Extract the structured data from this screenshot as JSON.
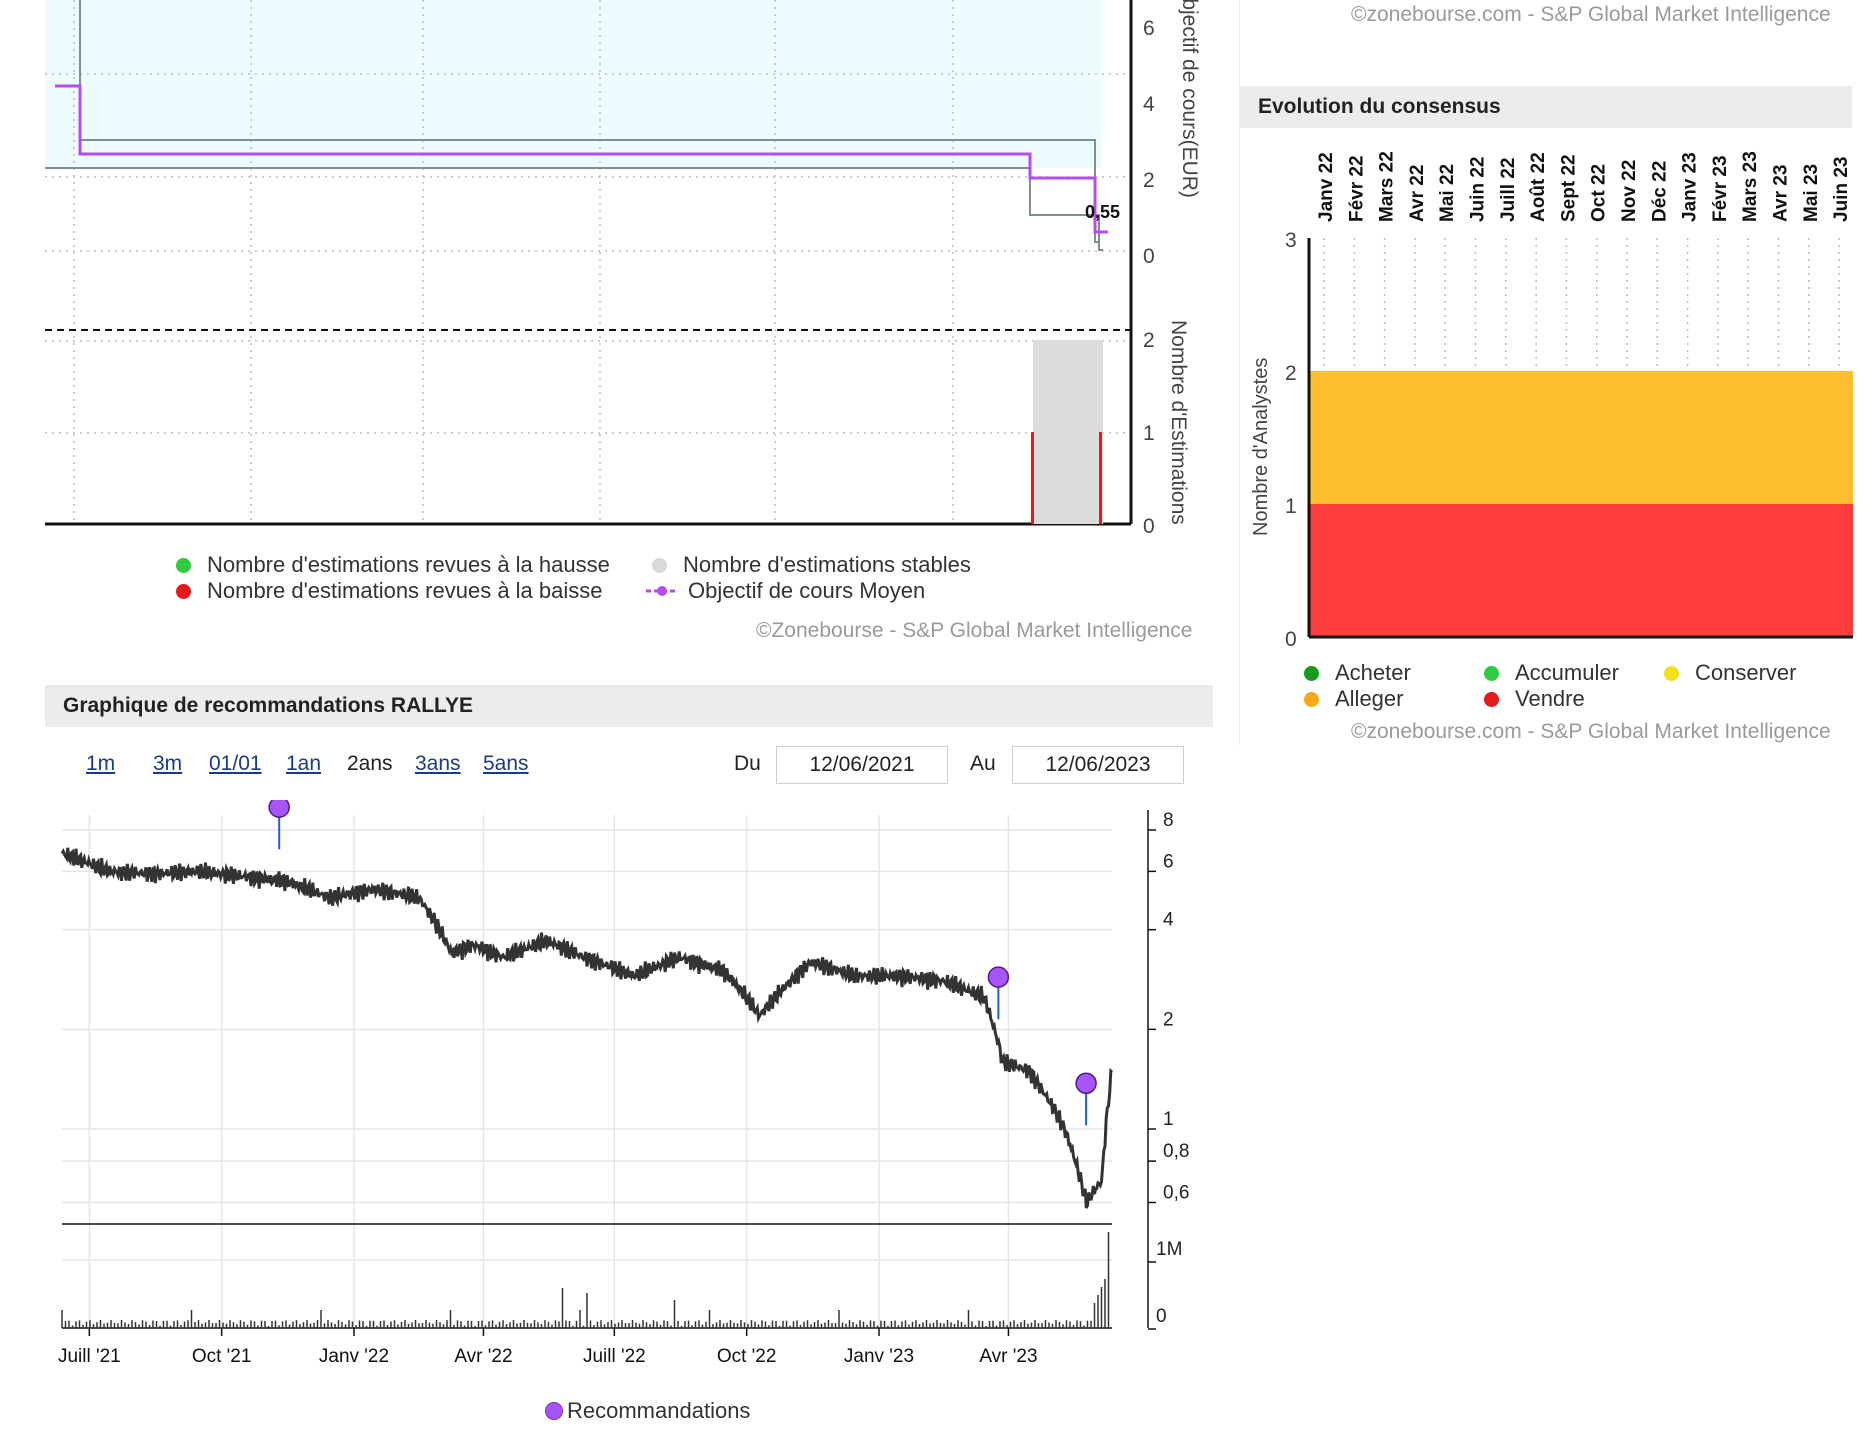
{
  "top_chart": {
    "axis_label_price": "Objectif de cours(EUR)",
    "axis_label_estimations": "Nombre d'Estimations",
    "price_ticks": [
      "6",
      "4",
      "2",
      "0"
    ],
    "estimation_ticks": [
      "2",
      "1",
      "0"
    ],
    "last_target_label": "0,55",
    "legend": [
      {
        "label": "Nombre d'estimations revues à la hausse",
        "color": "#2ecc40"
      },
      {
        "label": "Nombre d'estimations revues à la baisse",
        "color": "#e41a1c"
      },
      {
        "label": "Nombre d'estimations stables",
        "color": "#d9d9d9"
      },
      {
        "label": "Objectif de cours Moyen",
        "color": "#b44cf0"
      }
    ],
    "credit": "©Zonebourse - S&P Global Market Intelligence"
  },
  "consensus": {
    "top_credit": "©zonebourse.com - S&P Global Market Intelligence",
    "title": "Evolution du consensus",
    "months": [
      "Janv 22",
      "Févr 22",
      "Mars 22",
      "Avr 22",
      "Mai 22",
      "Juin 22",
      "Juill 22",
      "Août 22",
      "Sept 22",
      "Oct 22",
      "Nov 22",
      "Déc 22",
      "Janv 23",
      "Févr 23",
      "Mars 23",
      "Avr 23",
      "Mai 23",
      "Juin 23"
    ],
    "y_label": "Nombre d'Analystes",
    "y_ticks": [
      "3",
      "2",
      "1",
      "0"
    ],
    "legend": [
      {
        "label": "Acheter",
        "color": "#1a9a1a"
      },
      {
        "label": "Accumuler",
        "color": "#2ecc40"
      },
      {
        "label": "Conserver",
        "color": "#f2e01a"
      },
      {
        "label": "Alleger",
        "color": "#f7a81b"
      },
      {
        "label": "Vendre",
        "color": "#e41a1c"
      }
    ],
    "credit": "©zonebourse.com - S&P Global Market Intelligence"
  },
  "reco": {
    "title": "Graphique de recommandations RALLYE",
    "periods": [
      "1m",
      "3m",
      "01/01",
      "1an",
      "2ans",
      "3ans",
      "5ans"
    ],
    "active_period": "2ans",
    "from_label": "Du",
    "from_value": "12/06/2021",
    "to_label": "Au",
    "to_value": "12/06/2023",
    "price_ticks": [
      "8",
      "6",
      "4",
      "2",
      "1",
      "0,8",
      "0,6"
    ],
    "volume_ticks": [
      "1M",
      "0"
    ],
    "x_ticks": [
      "Juill '21",
      "Oct '21",
      "Janv '22",
      "Avr '22",
      "Juill '22",
      "Oct '22",
      "Janv '23",
      "Avr '23"
    ],
    "legend_label": "Recommandations",
    "marker_color": "#a855f7"
  },
  "chart_data": [
    {
      "type": "line",
      "title": "",
      "ylabel": "Objectif de cours(EUR)",
      "ylim": [
        0,
        6
      ],
      "series": [
        {
          "name": "Objectif de cours Moyen",
          "values": [
            4.4,
            2.6,
            2.6,
            2.6,
            2.0,
            0.55
          ]
        }
      ],
      "secondary": {
        "ylabel": "Nombre d'Estimations",
        "ylim": [
          0,
          2
        ],
        "bars": [
          {
            "name": "Nombre d'estimations stables",
            "values": [
              2,
              2
            ]
          },
          {
            "name": "Nombre d'estimations revues à la baisse",
            "values": [
              1,
              1
            ]
          }
        ]
      }
    },
    {
      "type": "area",
      "title": "Evolution du consensus",
      "categories": [
        "Janv 22",
        "Févr 22",
        "Mars 22",
        "Avr 22",
        "Mai 22",
        "Juin 22",
        "Juill 22",
        "Août 22",
        "Sept 22",
        "Oct 22",
        "Nov 22",
        "Déc 22",
        "Janv 23",
        "Févr 23",
        "Mars 23",
        "Avr 23",
        "Mai 23",
        "Juin 23"
      ],
      "ylabel": "Nombre d'Analystes",
      "ylim": [
        0,
        3
      ],
      "series": [
        {
          "name": "Vendre",
          "values": [
            1,
            1,
            1,
            1,
            1,
            1,
            1,
            1,
            1,
            1,
            1,
            1,
            1,
            1,
            1,
            1,
            1,
            1
          ]
        },
        {
          "name": "Alleger",
          "values": [
            1,
            1,
            1,
            1,
            1,
            1,
            1,
            1,
            1,
            1,
            1,
            1,
            1,
            1,
            1,
            1,
            1,
            1
          ]
        }
      ]
    },
    {
      "type": "line",
      "title": "Graphique de recommandations RALLYE",
      "ylim": [
        0.55,
        8
      ],
      "log_scale": true,
      "x": [
        "2021-06-12",
        "2021-07-15",
        "2021-08-15",
        "2021-09-15",
        "2021-10-15",
        "2021-11-15",
        "2021-12-15",
        "2022-01-15",
        "2022-02-15",
        "2022-03-10",
        "2022-03-25",
        "2022-04-15",
        "2022-05-15",
        "2022-06-10",
        "2022-07-15",
        "2022-08-15",
        "2022-09-15",
        "2022-10-10",
        "2022-11-15",
        "2022-12-15",
        "2023-01-15",
        "2023-02-15",
        "2023-03-15",
        "2023-03-28",
        "2023-04-15",
        "2023-05-10",
        "2023-05-25",
        "2023-06-05",
        "2023-06-12"
      ],
      "series": [
        {
          "name": "RALLYE",
          "values": [
            6.8,
            6.0,
            5.9,
            6.0,
            5.8,
            5.6,
            5.0,
            5.3,
            5.0,
            3.4,
            3.6,
            3.3,
            3.7,
            3.3,
            2.9,
            3.3,
            3.0,
            2.2,
            3.2,
            2.9,
            2.9,
            2.8,
            2.5,
            1.6,
            1.5,
            1.0,
            0.6,
            0.7,
            1.5
          ]
        }
      ],
      "recommendations": [
        {
          "date": "2021-11-10",
          "value": 7.5
        },
        {
          "date": "2023-03-25",
          "value": 2.3
        },
        {
          "date": "2023-05-25",
          "value": 1.1
        }
      ],
      "volume_ylim": [
        0,
        1000000
      ]
    }
  ]
}
